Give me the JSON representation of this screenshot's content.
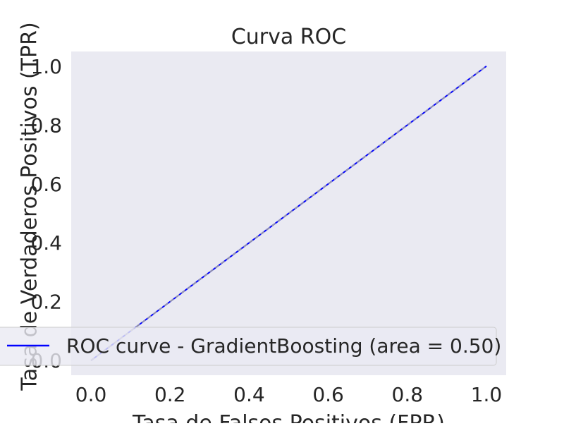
{
  "chart_data": {
    "type": "line",
    "title": "Curva ROC",
    "xlabel": "Tasa de Falsos Positivos (FPR)",
    "ylabel": "Tasa de Verdaderos Positivos (TPR)",
    "xlim": [
      -0.05,
      1.05
    ],
    "ylim": [
      -0.05,
      1.05
    ],
    "x_ticks": [
      0.0,
      0.2,
      0.4,
      0.6,
      0.8,
      1.0
    ],
    "y_ticks": [
      0.0,
      0.2,
      0.4,
      0.6,
      0.8,
      1.0
    ],
    "x_tick_labels": [
      "0.0",
      "0.2",
      "0.4",
      "0.6",
      "0.8",
      "1.0"
    ],
    "y_tick_labels": [
      "0.0",
      "0.2",
      "0.4",
      "0.6",
      "0.8",
      "1.0"
    ],
    "grid": false,
    "legend_position": "lower-right",
    "series": [
      {
        "name": "ROC curve - GradientBoosting (area = 0.50)",
        "x": [
          0.0,
          1.0
        ],
        "y": [
          0.0,
          1.0
        ],
        "color": "#0000ff",
        "style": "solid"
      },
      {
        "x": [
          0.0,
          1.0
        ],
        "y": [
          0.0,
          1.0
        ],
        "color": "#a0a0a0",
        "style": "dashed"
      }
    ]
  },
  "colors": {
    "axes_background": "#eaeaf2",
    "figure_background": "#ffffff",
    "text": "#262626"
  }
}
